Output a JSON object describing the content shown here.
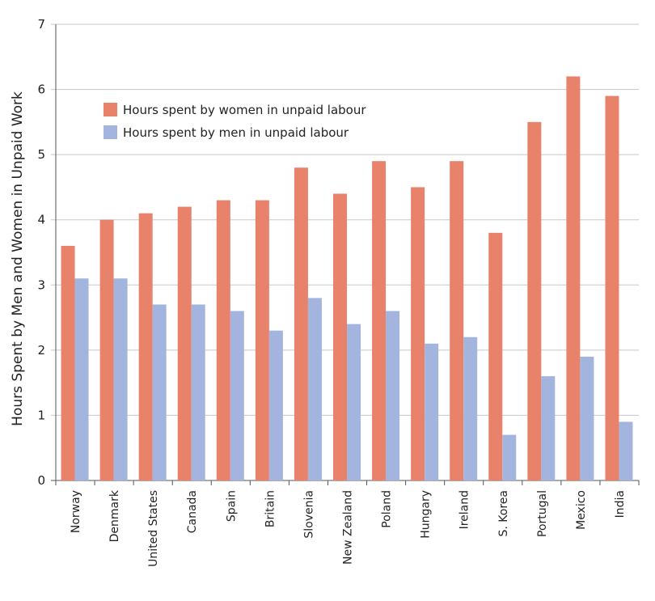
{
  "chart_data": {
    "type": "bar",
    "title": "",
    "xlabel": "",
    "ylabel": "Hours Spent by Men and Women in Unpaid Work",
    "ylim": [
      0,
      7
    ],
    "yticks": [
      "0",
      "1",
      "2",
      "3",
      "4",
      "5",
      "6",
      "7"
    ],
    "grid": true,
    "legend_placement": "top-left",
    "categories": [
      "Norway",
      "Denmark",
      "United States",
      "Canada",
      "Spain",
      "Britain",
      "Slovenia",
      "New Zealand",
      "Poland",
      "Hungary",
      "Ireland",
      "S. Korea",
      "Portugal",
      "Mexico",
      "India"
    ],
    "series": [
      {
        "name": "Hours spent by women in unpaid labour",
        "color": "#E8826A",
        "values": [
          3.6,
          4.0,
          4.1,
          4.2,
          4.3,
          4.3,
          4.8,
          4.4,
          4.9,
          4.5,
          4.9,
          3.8,
          5.5,
          6.2,
          5.9
        ]
      },
      {
        "name": "Hours spent by men in unpaid labour",
        "color": "#A3B4DE",
        "values": [
          3.1,
          3.1,
          2.7,
          2.7,
          2.6,
          2.3,
          2.8,
          2.4,
          2.6,
          2.1,
          2.2,
          0.7,
          1.6,
          1.9,
          0.9
        ]
      }
    ]
  }
}
